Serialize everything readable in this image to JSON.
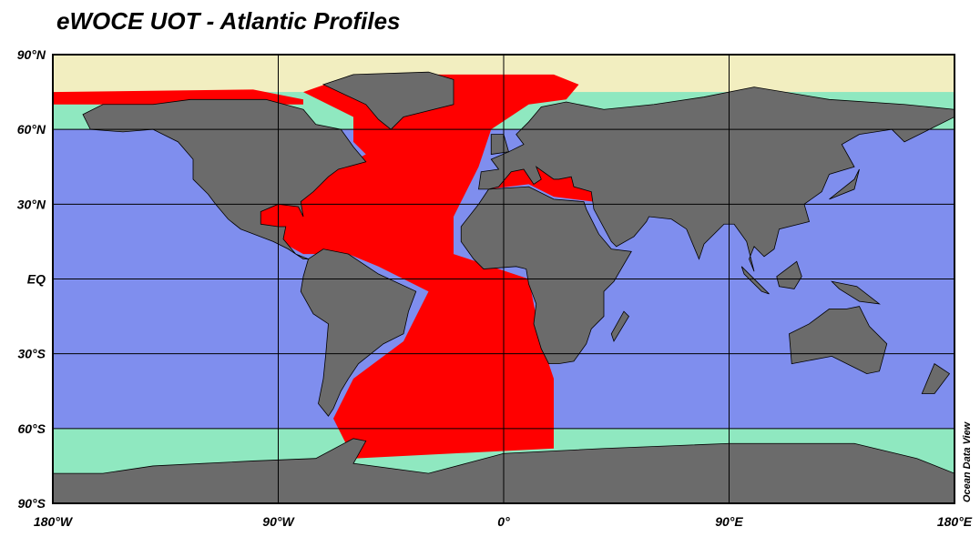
{
  "title": "eWOCE UOT - Atlantic Profiles",
  "lat_ticks": [
    {
      "value": 90,
      "label": "90°N"
    },
    {
      "value": 60,
      "label": "60°N"
    },
    {
      "value": 30,
      "label": "30°N"
    },
    {
      "value": 0,
      "label": "EQ"
    },
    {
      "value": -30,
      "label": "30°S"
    },
    {
      "value": -60,
      "label": "60°S"
    },
    {
      "value": -90,
      "label": "90°S"
    }
  ],
  "lon_ticks": [
    {
      "value": -180,
      "label": "180°W"
    },
    {
      "value": -90,
      "label": "90°W"
    },
    {
      "value": 0,
      "label": "0°"
    },
    {
      "value": 90,
      "label": "90°E"
    },
    {
      "value": 180,
      "label": "180°E"
    }
  ],
  "credit": "Ocean Data View"
}
